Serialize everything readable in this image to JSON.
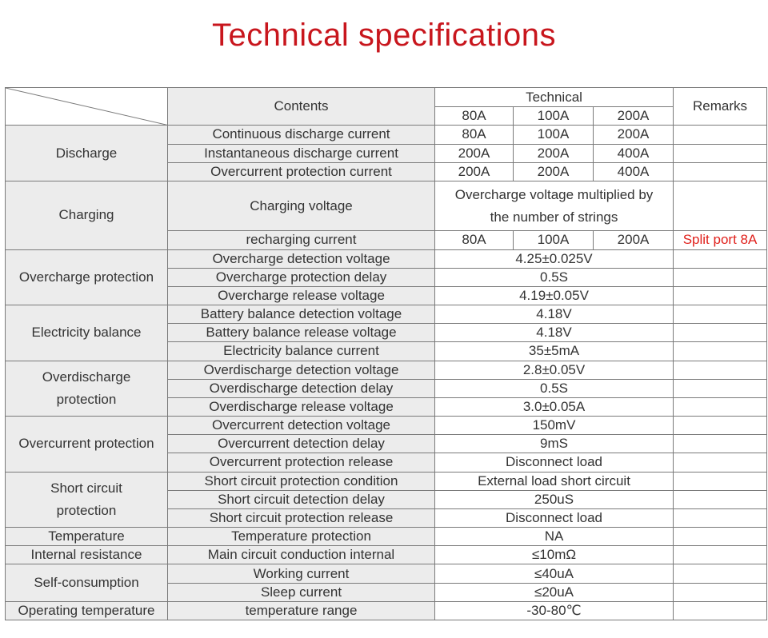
{
  "title": "Technical specifications",
  "header": {
    "contents": "Contents",
    "technical": "Technical",
    "models": [
      "80A",
      "100A",
      "200A"
    ],
    "remarks": "Remarks"
  },
  "discharge": {
    "label": "Discharge",
    "rows": [
      {
        "item": "Continuous discharge current",
        "v": [
          "80A",
          "100A",
          "200A"
        ]
      },
      {
        "item": "Instantaneous discharge current",
        "v": [
          "200A",
          "200A",
          "400A"
        ]
      },
      {
        "item": "Overcurrent protection current",
        "v": [
          "200A",
          "200A",
          "400A"
        ]
      }
    ]
  },
  "charging": {
    "label": "Charging",
    "voltage_item": "Charging voltage",
    "voltage_value_line1": "Overcharge voltage multiplied by",
    "voltage_value_line2": "the number of strings",
    "current_item": "recharging current",
    "current_values": [
      "80A",
      "100A",
      "200A"
    ],
    "current_remark": "Split port 8A"
  },
  "overcharge": {
    "label": "Overcharge protection",
    "rows": [
      {
        "item": "Overcharge detection voltage",
        "value": "4.25±0.025V"
      },
      {
        "item": "Overcharge protection delay",
        "value": "0.5S"
      },
      {
        "item": "Overcharge release voltage",
        "value": "4.19±0.05V"
      }
    ]
  },
  "balance": {
    "label": "Electricity balance",
    "rows": [
      {
        "item": "Battery balance detection voltage",
        "value": "4.18V"
      },
      {
        "item": "Battery balance release voltage",
        "value": "4.18V"
      },
      {
        "item": "Electricity balance current",
        "value": "35±5mA"
      }
    ]
  },
  "overdischarge": {
    "label_line1": "Overdischarge",
    "label_line2": "protection",
    "rows": [
      {
        "item": "Overdischarge detection voltage",
        "value": "2.8±0.05V"
      },
      {
        "item": "Overdischarge detection delay",
        "value": "0.5S"
      },
      {
        "item": "Overdischarge release voltage",
        "value": "3.0±0.05A"
      }
    ]
  },
  "overcurrent": {
    "label": "Overcurrent protection",
    "rows": [
      {
        "item": "Overcurrent detection voltage",
        "value": "150mV"
      },
      {
        "item": "Overcurrent detection delay",
        "value": "9mS"
      },
      {
        "item": "Overcurrent protection release",
        "value": "Disconnect load"
      }
    ]
  },
  "short_circuit": {
    "label_line1": "Short circuit",
    "label_line2": "protection",
    "rows": [
      {
        "item": "Short circuit protection condition",
        "value": "External load short circuit"
      },
      {
        "item": "Short circuit detection delay",
        "value": "250uS"
      },
      {
        "item": "Short circuit protection release",
        "value": "Disconnect load"
      }
    ]
  },
  "temperature": {
    "label": "Temperature",
    "item": "Temperature protection",
    "value": "NA"
  },
  "resistance": {
    "label": "Internal resistance",
    "item": "Main circuit conduction internal",
    "value": "≤10mΩ"
  },
  "self_consumption": {
    "label": "Self-consumption",
    "rows": [
      {
        "item": "Working current",
        "value": "≤40uA"
      },
      {
        "item": "Sleep current",
        "value": "≤20uA"
      }
    ]
  },
  "operating_temp": {
    "label": "Operating temperature",
    "item": "temperature range",
    "value": "-30-80℃"
  }
}
